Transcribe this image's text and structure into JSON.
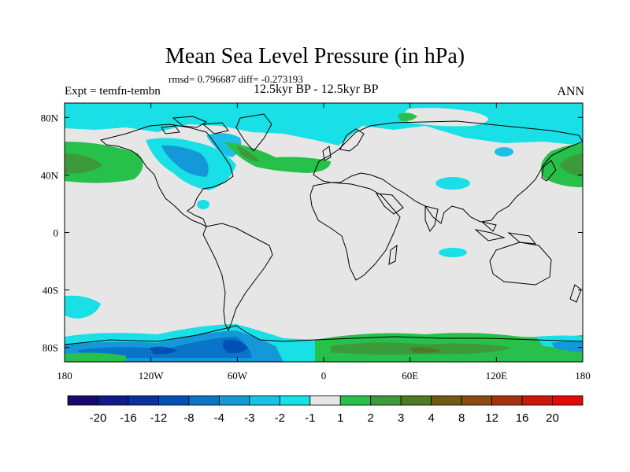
{
  "chart_data": {
    "type": "heatmap",
    "title": "Mean Sea Level Pressure (in hPa)",
    "stats": "rmsd= 0.796687 diff= -0.273193",
    "left_label": "Expt = temfn-tembn",
    "center_label": "12.5kyr BP - 12.5kyr BP",
    "right_label": "ANN",
    "x_ticks": [
      "180",
      "120W",
      "60W",
      "0",
      "60E",
      "120E",
      "180"
    ],
    "y_ticks": [
      "80N",
      "40N",
      "0",
      "40S",
      "80S"
    ],
    "lon_range": [
      -180,
      180
    ],
    "lat_range": [
      -90,
      90
    ],
    "colorbar": {
      "levels": [
        "-20",
        "-16",
        "-12",
        "-8",
        "-4",
        "-3",
        "-2",
        "-1",
        "1",
        "2",
        "3",
        "4",
        "8",
        "12",
        "16",
        "20"
      ],
      "colors": [
        "#1a0a6e",
        "#0f1a8c",
        "#0a2f9e",
        "#0050b8",
        "#0a74c8",
        "#1498d8",
        "#1cc0e6",
        "#19dfe6",
        "#e6e6e6",
        "#27c04a",
        "#3c9a3a",
        "#4d7a22",
        "#705a14",
        "#8c4a10",
        "#a83010",
        "#c81a0a",
        "#e00a0a"
      ]
    },
    "regions": [
      {
        "name": "arctic-band-north",
        "value": -1.5
      },
      {
        "name": "n-atlantic-positive",
        "value": 2.5
      },
      {
        "name": "n-pacific-positive",
        "value": 2.5
      },
      {
        "name": "canada-negative",
        "value": -2.5
      },
      {
        "name": "southern-ocean-atlantic-positive",
        "value": 2.5
      },
      {
        "name": "antarctic-negative",
        "value": -6
      }
    ]
  }
}
